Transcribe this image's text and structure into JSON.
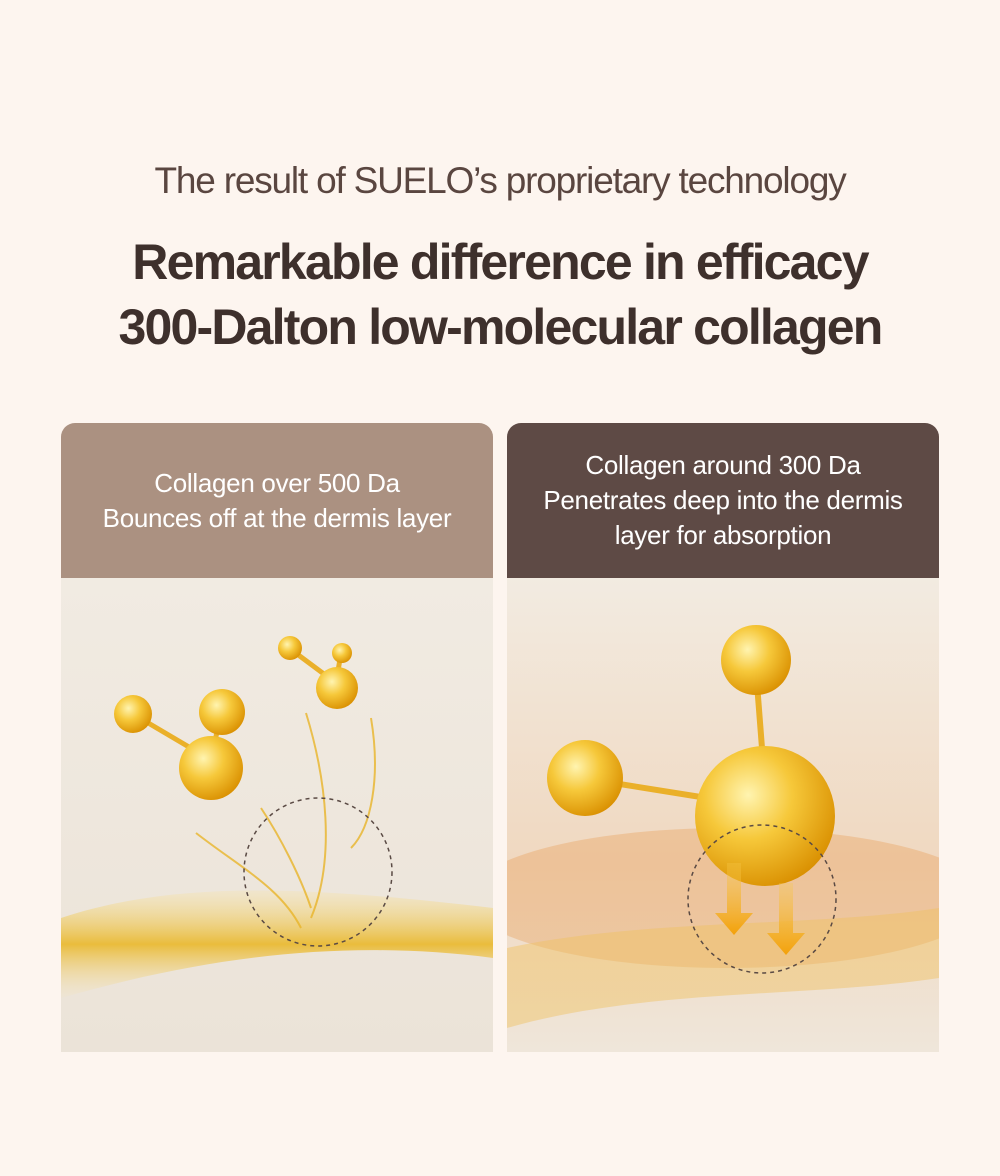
{
  "header": {
    "subtitle": "The result of SUELO’s proprietary technology",
    "title": [
      "Remarkable difference in efficacy",
      "300-Dalton low-molecular collagen"
    ]
  },
  "cards": [
    {
      "lines": [
        "Collagen over 500 Da",
        "Bounces off at the dermis layer"
      ]
    },
    {
      "lines": [
        "Collagen around 300 Da",
        "Penetrates deep into the dermis",
        "layer for absorption"
      ]
    }
  ]
}
